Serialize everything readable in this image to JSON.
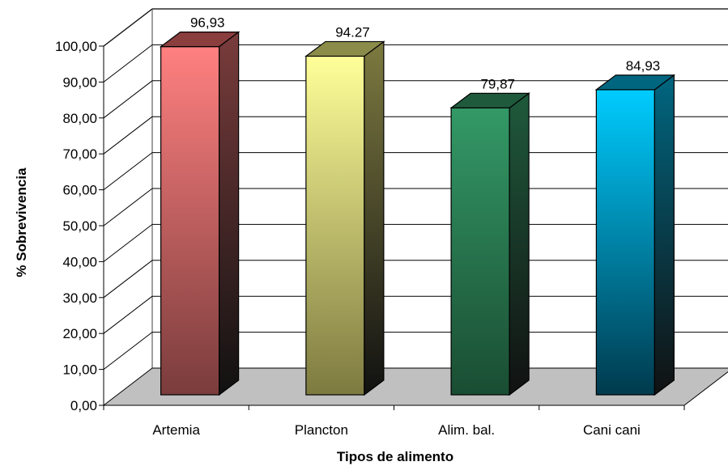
{
  "chart_data": {
    "type": "bar",
    "title": "",
    "xlabel": "Tipos de alimento",
    "ylabel": "% Sobrevivencia",
    "ylim": [
      0,
      100
    ],
    "ytick_step": 10,
    "ytick_labels": [
      "0,00",
      "10,00",
      "20,00",
      "30,00",
      "40,00",
      "50,00",
      "60,00",
      "70,00",
      "80,00",
      "90,00",
      "100,00"
    ],
    "categories": [
      "Artemia",
      "Plancton",
      "Alim. bal.",
      "Cani cani"
    ],
    "values": [
      96.93,
      94.27,
      79.87,
      84.93
    ],
    "data_labels": [
      "96,93",
      "94.27",
      "79,87",
      "84,93"
    ],
    "grid": true,
    "legend": "none",
    "bar_colors": [
      {
        "top": "#ff8080",
        "bottom": "#7a3c3c",
        "side": "#7a3c3c",
        "cap": "#8a3e3e"
      },
      {
        "top": "#ffff99",
        "bottom": "#7d7a40",
        "side": "#7d7a40",
        "cap": "#8c8c4a"
      },
      {
        "top": "#339966",
        "bottom": "#1a4d33",
        "side": "#1f5a3c",
        "cap": "#1f5a3c"
      },
      {
        "top": "#00ccff",
        "bottom": "#003a4d",
        "side": "#006680",
        "cap": "#006680"
      }
    ],
    "floor_color": "#c0c0c0",
    "gridline_color": "#000000"
  }
}
